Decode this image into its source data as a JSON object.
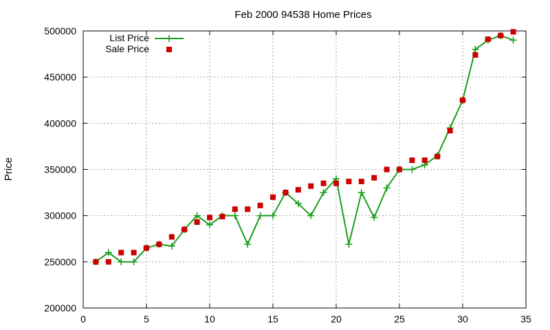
{
  "chart_data": {
    "type": "line",
    "title": "Feb 2000 94538 Home Prices",
    "xlabel": "",
    "ylabel": "Price",
    "xlim": [
      0,
      35
    ],
    "ylim": [
      200000,
      500000
    ],
    "xticks": [
      "0",
      "5",
      "10",
      "15",
      "20",
      "25",
      "30",
      "35"
    ],
    "yticks": [
      "200000",
      "250000",
      "300000",
      "350000",
      "400000",
      "450000",
      "500000"
    ],
    "grid": true,
    "legend_position": "top-left",
    "x": [
      1,
      2,
      3,
      4,
      5,
      6,
      7,
      8,
      9,
      10,
      11,
      12,
      13,
      14,
      15,
      16,
      17,
      18,
      19,
      20,
      21,
      22,
      23,
      24,
      25,
      26,
      27,
      28,
      29,
      30,
      31,
      32,
      33,
      34
    ],
    "series": [
      {
        "name": "List Price",
        "style": "lines+crosses",
        "color": "#1a9e1a",
        "values": [
          250000,
          260000,
          250000,
          250000,
          265000,
          269000,
          267000,
          285000,
          300000,
          290000,
          300000,
          300000,
          269000,
          300000,
          300000,
          325000,
          313000,
          300000,
          325000,
          340000,
          269000,
          325000,
          298000,
          330000,
          350000,
          350000,
          355000,
          365000,
          395000,
          425000,
          480000,
          490000,
          495000,
          490000
        ]
      },
      {
        "name": "Sale Price",
        "style": "squares",
        "color": "#cc0000",
        "values": [
          250000,
          250000,
          260000,
          260000,
          265000,
          269000,
          277000,
          285000,
          293000,
          298000,
          299000,
          307000,
          307000,
          311000,
          320000,
          325000,
          328000,
          332000,
          335000,
          335000,
          337000,
          337000,
          341000,
          350000,
          350000,
          360000,
          360000,
          364000,
          392000,
          425000,
          474000,
          491000,
          495000,
          499000
        ]
      }
    ]
  }
}
